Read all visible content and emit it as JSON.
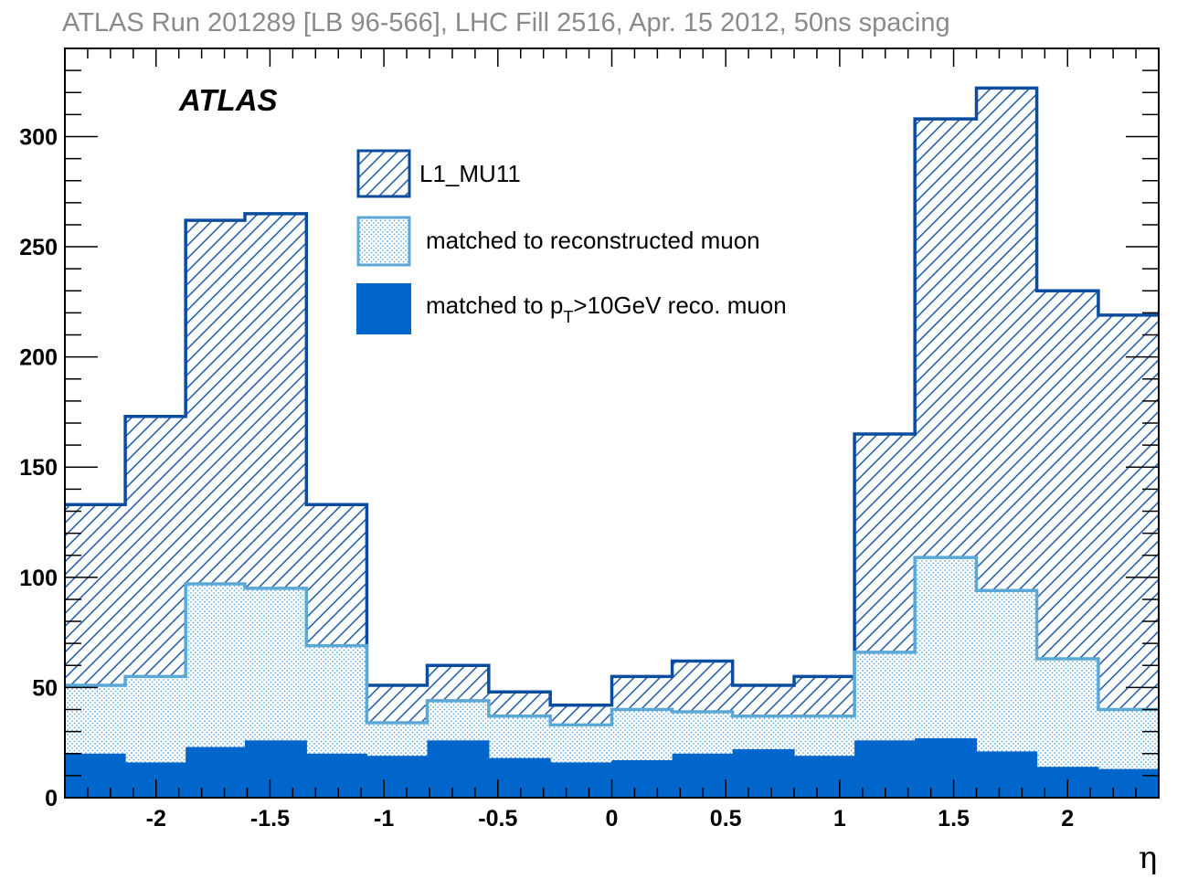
{
  "chart_data": {
    "type": "histogram",
    "title": "ATLAS Run 201289 [LB 96-566], LHC Fill 2516, Apr. 15 2012, 50ns spacing",
    "label": "ATLAS",
    "xlabel": "η",
    "ylabel": "",
    "xlim": [
      -2.4,
      2.4
    ],
    "ylim": [
      0,
      340
    ],
    "bin_edges": [
      -2.4,
      -2.135,
      -1.87,
      -1.61,
      -1.34,
      -1.075,
      -0.81,
      -0.54,
      -0.27,
      0,
      0.265,
      0.53,
      0.8,
      1.065,
      1.33,
      1.6,
      1.865,
      2.135,
      2.4
    ],
    "x_tick_values": [
      -2,
      -1.5,
      -1,
      -0.5,
      0,
      0.5,
      1,
      1.5,
      2
    ],
    "x_tick_labels": [
      "-2",
      "-1.5",
      "-1",
      "-0.5",
      "0",
      "0.5",
      "1",
      "1.5",
      "2"
    ],
    "y_tick_values": [
      0,
      50,
      100,
      150,
      200,
      250,
      300
    ],
    "y_tick_labels": [
      "0",
      "50",
      "100",
      "150",
      "200",
      "250",
      "300"
    ],
    "series": [
      {
        "name": "L1_MU11",
        "style": "hatched",
        "color": "#0a4c9e",
        "values": [
          133,
          173,
          262,
          265,
          133,
          51,
          60,
          48,
          42,
          55,
          62,
          51,
          55,
          165,
          308,
          322,
          230,
          219
        ]
      },
      {
        "name": "matched to reconstructed muon",
        "style": "dotted",
        "color": "#5ba8d6",
        "values": [
          51,
          55,
          97,
          95,
          69,
          34,
          44,
          37,
          33,
          40,
          39,
          37,
          37,
          66,
          109,
          94,
          63,
          40
        ]
      },
      {
        "name": "matched to p_T>10GeV reco. muon",
        "legend_parts": [
          "matched to p",
          "T",
          ">10GeV reco. muon"
        ],
        "style": "filled",
        "color": "#0066cc",
        "values": [
          20,
          16,
          23,
          26,
          20,
          19,
          26,
          18,
          16,
          17,
          20,
          22,
          19,
          26,
          27,
          21,
          14,
          13
        ]
      }
    ]
  }
}
